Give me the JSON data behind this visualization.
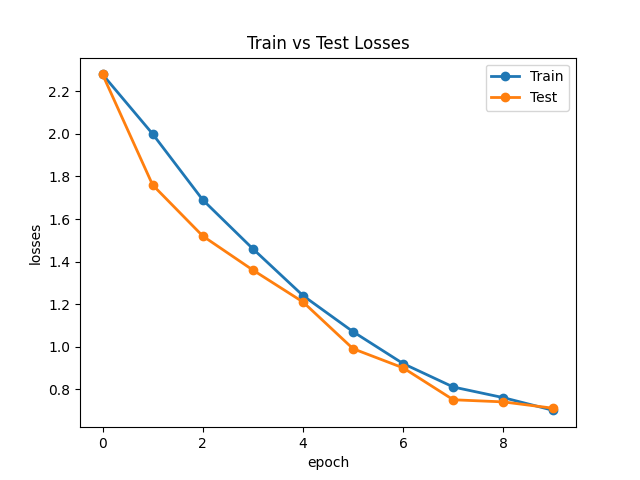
{
  "title": "Train vs Test Losses",
  "xlabel": "epoch",
  "ylabel": "losses",
  "epochs": [
    0,
    1,
    2,
    3,
    4,
    5,
    6,
    7,
    8,
    9
  ],
  "train_losses": [
    2.28,
    2.0,
    1.69,
    1.46,
    1.24,
    1.07,
    0.92,
    0.81,
    0.76,
    0.7
  ],
  "test_losses": [
    2.28,
    1.76,
    1.52,
    1.36,
    1.21,
    0.99,
    0.9,
    0.75,
    0.74,
    0.71
  ],
  "train_color": "#1f77b4",
  "test_color": "#ff7f0e",
  "train_label": "Train",
  "test_label": "Test",
  "marker": "o",
  "linewidth": 2,
  "markersize": 6,
  "figsize": [
    6.4,
    4.8
  ],
  "dpi": 100,
  "ylim": [
    0.6,
    2.35
  ],
  "xlim": [
    -0.2,
    9.2
  ]
}
